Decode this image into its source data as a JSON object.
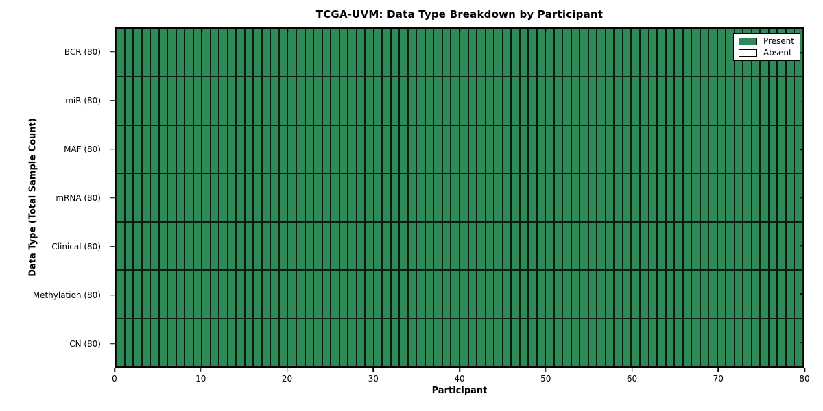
{
  "title": "TCGA-UVM: Data Type Breakdown by Participant",
  "chart_data": {
    "type": "heatmap",
    "title": "TCGA-UVM: Data Type Breakdown by Participant",
    "xlabel": "Participant",
    "ylabel": "Data Type (Total Sample Count)",
    "x_min": 0,
    "x_max": 80,
    "x_ticks": [
      0,
      10,
      20,
      30,
      40,
      50,
      60,
      70,
      80
    ],
    "n_participants": 80,
    "all_present": true,
    "rows": [
      {
        "name": "BCR",
        "label": "BCR (80)",
        "total": 80,
        "present_count": 80
      },
      {
        "name": "miR",
        "label": "miR (80)",
        "total": 80,
        "present_count": 80
      },
      {
        "name": "MAF",
        "label": "MAF (80)",
        "total": 80,
        "present_count": 80
      },
      {
        "name": "mRNA",
        "label": "mRNA (80)",
        "total": 80,
        "present_count": 80
      },
      {
        "name": "Clinical",
        "label": "Clinical (80)",
        "total": 80,
        "present_count": 80
      },
      {
        "name": "Methylation",
        "label": "Methylation (80)",
        "total": 80,
        "present_count": 80
      },
      {
        "name": "CN",
        "label": "CN (80)",
        "total": 80,
        "present_count": 80
      }
    ],
    "legend": [
      {
        "label": "Present",
        "color": "#2e8b57"
      },
      {
        "label": "Absent",
        "color": "#ffffff"
      }
    ],
    "legend_position": "upper right",
    "colors": {
      "present": "#2e8b57",
      "absent": "#ffffff",
      "grid_line": "#000000",
      "background": "#ffffff"
    },
    "grid": true
  }
}
